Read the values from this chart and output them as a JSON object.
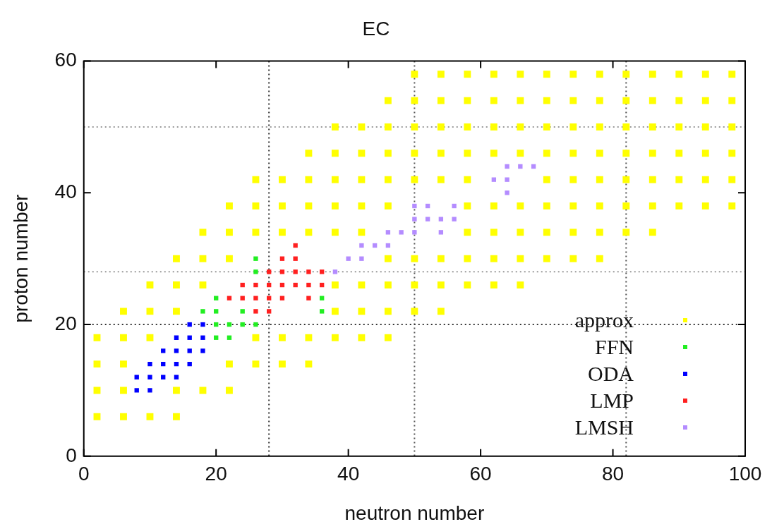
{
  "chart_data": {
    "type": "scatter",
    "title": "EC",
    "xlabel": "neutron number",
    "ylabel": "proton number",
    "xlim": [
      0,
      100
    ],
    "ylim": [
      0,
      60
    ],
    "xticks": [
      0,
      20,
      40,
      60,
      80,
      100
    ],
    "yticks": [
      0,
      20,
      40,
      60
    ],
    "marker": "square",
    "legend": "bottom right",
    "ref_lines": [
      {
        "axis": "x",
        "value": 28,
        "color": "#333333",
        "line_style": "dotted"
      },
      {
        "axis": "x",
        "value": 50,
        "color": "#555555",
        "line_style": "dotted"
      },
      {
        "axis": "x",
        "value": 82,
        "color": "#555555",
        "line_style": "dotted"
      },
      {
        "axis": "y",
        "value": 20,
        "color": "#333333",
        "line_style": "dotted"
      },
      {
        "axis": "y",
        "value": 28,
        "color": "#999999",
        "line_style": "dotted"
      },
      {
        "axis": "y",
        "value": 50,
        "color": "#999999",
        "line_style": "dotted"
      }
    ],
    "series": [
      {
        "name": "approx",
        "color": "#ffff00",
        "x": [
          2,
          2,
          2,
          2,
          6,
          6,
          6,
          6,
          6,
          10,
          10,
          10,
          10,
          14,
          14,
          14,
          14,
          14,
          18,
          18,
          18,
          18,
          22,
          22,
          22,
          22,
          22,
          26,
          26,
          26,
          26,
          26,
          30,
          30,
          30,
          30,
          30,
          34,
          34,
          34,
          34,
          34,
          34,
          38,
          38,
          38,
          38,
          38,
          38,
          38,
          38,
          42,
          42,
          42,
          42,
          42,
          42,
          42,
          42,
          46,
          46,
          46,
          46,
          46,
          46,
          46,
          46,
          46,
          50,
          50,
          50,
          50,
          50,
          50,
          50,
          50,
          54,
          54,
          54,
          54,
          54,
          54,
          54,
          54,
          58,
          58,
          58,
          58,
          58,
          58,
          58,
          58,
          58,
          62,
          62,
          62,
          62,
          62,
          62,
          62,
          62,
          66,
          66,
          66,
          66,
          66,
          66,
          66,
          66,
          70,
          70,
          70,
          70,
          70,
          70,
          70,
          70,
          74,
          74,
          74,
          74,
          74,
          74,
          74,
          74,
          78,
          78,
          78,
          78,
          78,
          78,
          78,
          78,
          82,
          82,
          82,
          82,
          82,
          82,
          82,
          86,
          86,
          86,
          86,
          86,
          86,
          86,
          90,
          90,
          90,
          90,
          90,
          90,
          94,
          94,
          94,
          94,
          94,
          94,
          98,
          98,
          98,
          98,
          98,
          98
        ],
        "values": [
          6,
          10,
          14,
          18,
          6,
          10,
          14,
          18,
          22,
          6,
          18,
          22,
          26,
          6,
          10,
          22,
          26,
          30,
          10,
          26,
          30,
          34,
          10,
          14,
          30,
          34,
          38,
          14,
          18,
          34,
          38,
          42,
          14,
          18,
          34,
          38,
          42,
          14,
          18,
          34,
          38,
          42,
          46,
          18,
          22,
          26,
          34,
          38,
          42,
          46,
          50,
          18,
          22,
          26,
          34,
          38,
          42,
          46,
          50,
          18,
          22,
          26,
          30,
          38,
          42,
          46,
          50,
          54,
          22,
          26,
          30,
          42,
          46,
          50,
          54,
          58,
          22,
          26,
          30,
          42,
          46,
          50,
          54,
          58,
          26,
          30,
          34,
          38,
          42,
          46,
          50,
          54,
          58,
          26,
          30,
          34,
          38,
          46,
          50,
          54,
          58,
          26,
          30,
          34,
          38,
          46,
          50,
          54,
          58,
          30,
          34,
          38,
          42,
          46,
          50,
          54,
          58,
          30,
          34,
          38,
          42,
          46,
          50,
          54,
          58,
          30,
          34,
          38,
          42,
          46,
          50,
          54,
          58,
          34,
          38,
          42,
          46,
          50,
          54,
          58,
          34,
          38,
          42,
          46,
          50,
          54,
          58,
          38,
          42,
          46,
          50,
          54,
          58,
          38,
          42,
          46,
          50,
          54,
          58,
          38,
          42,
          46,
          50,
          54,
          58
        ]
      },
      {
        "name": "FFN",
        "color": "#22ee22",
        "x": [
          18,
          20,
          20,
          20,
          22,
          22,
          24,
          24,
          26,
          20,
          26,
          26,
          36,
          36
        ],
        "values": [
          22,
          18,
          20,
          22,
          18,
          20,
          20,
          22,
          20,
          24,
          28,
          30,
          22,
          24
        ]
      },
      {
        "name": "ODA",
        "color": "#0000ff",
        "x": [
          8,
          8,
          10,
          10,
          10,
          12,
          12,
          12,
          14,
          14,
          14,
          14,
          16,
          16,
          16,
          16,
          18,
          18,
          18
        ],
        "values": [
          10,
          12,
          10,
          12,
          14,
          12,
          14,
          16,
          12,
          14,
          16,
          18,
          14,
          16,
          18,
          20,
          16,
          18,
          20
        ]
      },
      {
        "name": "LMP",
        "color": "#ff2020",
        "x": [
          22,
          24,
          24,
          26,
          26,
          26,
          28,
          28,
          28,
          28,
          30,
          30,
          30,
          30,
          32,
          32,
          32,
          32,
          34,
          34,
          34,
          36,
          36
        ],
        "values": [
          24,
          24,
          26,
          22,
          24,
          26,
          22,
          24,
          26,
          28,
          24,
          26,
          28,
          30,
          26,
          28,
          30,
          32,
          24,
          26,
          28,
          26,
          28
        ]
      },
      {
        "name": "LMSH",
        "color": "#b48cff",
        "x": [
          38,
          40,
          42,
          42,
          44,
          46,
          46,
          48,
          50,
          50,
          50,
          52,
          52,
          54,
          54,
          56,
          56,
          62,
          64,
          64,
          64,
          66,
          68
        ],
        "values": [
          28,
          30,
          30,
          32,
          32,
          32,
          34,
          34,
          34,
          36,
          38,
          36,
          38,
          34,
          36,
          36,
          38,
          42,
          40,
          42,
          44,
          44,
          44
        ]
      }
    ]
  }
}
